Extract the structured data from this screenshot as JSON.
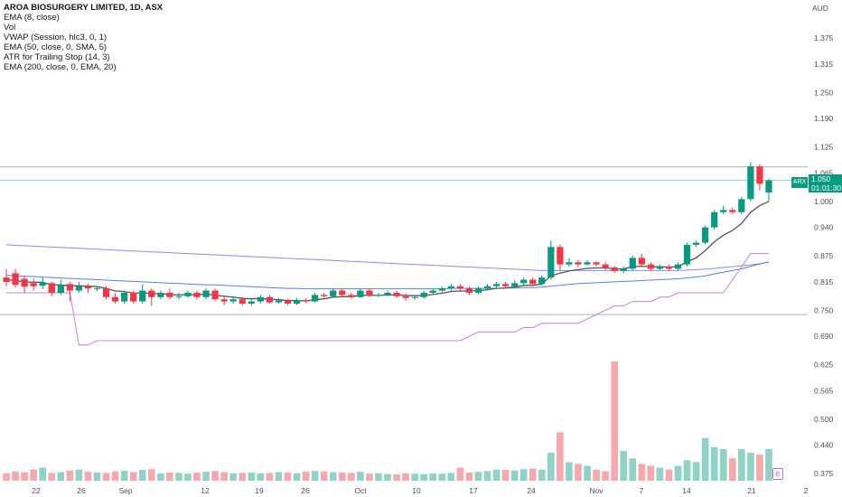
{
  "legend": {
    "title": "AROA BIOSURGERY LIMITED, 1D, ASX",
    "indicators": [
      "EMA (8, close)",
      "Vol",
      "VWAP (Session, hlc3, 0, 1)",
      "EMA (50, close, 0, SMA, 5)",
      "ATR for Trailing Stop (14, 3)",
      "EMA (200, close, 0, EMA, 20)"
    ]
  },
  "currency": "AUD",
  "price_tag": {
    "ticker": "ARX",
    "price": "1.050",
    "countdown": "01:01:30"
  },
  "earnings_badge": "E",
  "colors": {
    "up": "#089981",
    "down": "#f23645",
    "vol_up": "#8fd2c6",
    "vol_down": "#f6a8ad",
    "ema8": "#555555",
    "ema50": "#5b7bf0",
    "ema200": "#8c8ce6",
    "atr_stop": "#c87fd6"
  },
  "chart_data": {
    "type": "candlestick",
    "title": "AROA BIOSURGERY LIMITED, 1D, ASX",
    "y_ticks": [
      "1.375",
      "1.315",
      "1.250",
      "1.190",
      "1.125",
      "1.065",
      "1.000",
      "0.940",
      "0.875",
      "0.815",
      "0.750",
      "0.690",
      "0.625",
      "0.565",
      "0.500",
      "0.440",
      "0.375"
    ],
    "x_ticks": [
      "22",
      "26",
      "Sep",
      "12",
      "19",
      "26",
      "Oct",
      "10",
      "17",
      "24",
      "Nov",
      "7",
      "14",
      "21",
      "2"
    ],
    "ylim": [
      0.33,
      1.43
    ],
    "reference_lines": [
      1.079,
      1.048,
      0.74
    ],
    "candles": [
      [
        0.825,
        0.815,
        0.845,
        0.805,
        40
      ],
      [
        0.835,
        0.808,
        0.845,
        0.802,
        50
      ],
      [
        0.822,
        0.804,
        0.83,
        0.79,
        45
      ],
      [
        0.812,
        0.805,
        0.822,
        0.795,
        60
      ],
      [
        0.806,
        0.814,
        0.825,
        0.798,
        70
      ],
      [
        0.812,
        0.79,
        0.815,
        0.782,
        42
      ],
      [
        0.79,
        0.808,
        0.82,
        0.785,
        46
      ],
      [
        0.81,
        0.795,
        0.815,
        0.77,
        55
      ],
      [
        0.795,
        0.805,
        0.815,
        0.79,
        60
      ],
      [
        0.805,
        0.8,
        0.81,
        0.79,
        48
      ],
      [
        0.8,
        0.8,
        0.806,
        0.794,
        44
      ],
      [
        0.8,
        0.78,
        0.805,
        0.775,
        42
      ],
      [
        0.78,
        0.77,
        0.79,
        0.765,
        50
      ],
      [
        0.77,
        0.79,
        0.795,
        0.765,
        54
      ],
      [
        0.79,
        0.77,
        0.795,
        0.765,
        46
      ],
      [
        0.77,
        0.795,
        0.81,
        0.765,
        58
      ],
      [
        0.795,
        0.78,
        0.8,
        0.76,
        62
      ],
      [
        0.78,
        0.79,
        0.795,
        0.775,
        40
      ],
      [
        0.79,
        0.78,
        0.8,
        0.775,
        44
      ],
      [
        0.78,
        0.782,
        0.79,
        0.775,
        42
      ],
      [
        0.782,
        0.79,
        0.795,
        0.778,
        38
      ],
      [
        0.79,
        0.78,
        0.795,
        0.775,
        44
      ],
      [
        0.78,
        0.795,
        0.8,
        0.775,
        48
      ],
      [
        0.795,
        0.775,
        0.8,
        0.77,
        52
      ],
      [
        0.775,
        0.77,
        0.782,
        0.762,
        46
      ],
      [
        0.77,
        0.775,
        0.78,
        0.765,
        40
      ],
      [
        0.775,
        0.765,
        0.78,
        0.76,
        42
      ],
      [
        0.765,
        0.77,
        0.775,
        0.76,
        44
      ],
      [
        0.77,
        0.78,
        0.785,
        0.765,
        40
      ],
      [
        0.78,
        0.768,
        0.785,
        0.765,
        42
      ],
      [
        0.768,
        0.772,
        0.778,
        0.765,
        46
      ],
      [
        0.772,
        0.765,
        0.775,
        0.762,
        44
      ],
      [
        0.765,
        0.773,
        0.778,
        0.762,
        40
      ],
      [
        0.773,
        0.77,
        0.778,
        0.766,
        48
      ],
      [
        0.77,
        0.785,
        0.79,
        0.768,
        52
      ],
      [
        0.785,
        0.782,
        0.79,
        0.778,
        50
      ],
      [
        0.782,
        0.795,
        0.8,
        0.78,
        46
      ],
      [
        0.795,
        0.785,
        0.8,
        0.78,
        44
      ],
      [
        0.785,
        0.78,
        0.79,
        0.776,
        42
      ],
      [
        0.78,
        0.795,
        0.8,
        0.778,
        48
      ],
      [
        0.795,
        0.785,
        0.8,
        0.78,
        38
      ],
      [
        0.785,
        0.785,
        0.79,
        0.78,
        40
      ],
      [
        0.785,
        0.79,
        0.795,
        0.782,
        36
      ],
      [
        0.79,
        0.782,
        0.795,
        0.778,
        34
      ],
      [
        0.782,
        0.778,
        0.788,
        0.772,
        40
      ],
      [
        0.778,
        0.78,
        0.785,
        0.774,
        38
      ],
      [
        0.78,
        0.79,
        0.795,
        0.776,
        36
      ],
      [
        0.79,
        0.795,
        0.8,
        0.785,
        40
      ],
      [
        0.795,
        0.8,
        0.805,
        0.79,
        38
      ],
      [
        0.8,
        0.805,
        0.81,
        0.795,
        42
      ],
      [
        0.805,
        0.8,
        0.81,
        0.795,
        70
      ],
      [
        0.8,
        0.79,
        0.805,
        0.785,
        44
      ],
      [
        0.79,
        0.8,
        0.805,
        0.786,
        48
      ],
      [
        0.8,
        0.805,
        0.81,
        0.795,
        52
      ],
      [
        0.805,
        0.81,
        0.815,
        0.8,
        60
      ],
      [
        0.81,
        0.805,
        0.815,
        0.8,
        58
      ],
      [
        0.805,
        0.812,
        0.818,
        0.8,
        55
      ],
      [
        0.812,
        0.82,
        0.825,
        0.805,
        62
      ],
      [
        0.82,
        0.81,
        0.825,
        0.805,
        66
      ],
      [
        0.81,
        0.825,
        0.83,
        0.806,
        60
      ],
      [
        0.825,
        0.895,
        0.91,
        0.82,
        150
      ],
      [
        0.895,
        0.855,
        0.9,
        0.84,
        260
      ],
      [
        0.855,
        0.86,
        0.87,
        0.85,
        100
      ],
      [
        0.86,
        0.855,
        0.865,
        0.848,
        90
      ],
      [
        0.855,
        0.86,
        0.865,
        0.852,
        80
      ],
      [
        0.86,
        0.855,
        0.862,
        0.85,
        60
      ],
      [
        0.855,
        0.848,
        0.86,
        0.842,
        50
      ],
      [
        0.848,
        0.84,
        0.852,
        0.835,
        640
      ],
      [
        0.84,
        0.845,
        0.85,
        0.835,
        160
      ],
      [
        0.845,
        0.87,
        0.875,
        0.84,
        120
      ],
      [
        0.87,
        0.855,
        0.88,
        0.85,
        90
      ],
      [
        0.855,
        0.845,
        0.86,
        0.84,
        80
      ],
      [
        0.845,
        0.85,
        0.855,
        0.842,
        70
      ],
      [
        0.85,
        0.845,
        0.855,
        0.84,
        60
      ],
      [
        0.845,
        0.855,
        0.86,
        0.842,
        80
      ],
      [
        0.855,
        0.9,
        0.905,
        0.85,
        110
      ],
      [
        0.9,
        0.905,
        0.91,
        0.895,
        100
      ],
      [
        0.905,
        0.94,
        0.945,
        0.9,
        230
      ],
      [
        0.94,
        0.975,
        0.98,
        0.935,
        180
      ],
      [
        0.975,
        0.98,
        0.99,
        0.97,
        170
      ],
      [
        0.98,
        0.975,
        0.985,
        0.97,
        120
      ],
      [
        0.975,
        1.005,
        1.01,
        0.97,
        170
      ],
      [
        1.005,
        1.08,
        1.09,
        1.0,
        150
      ],
      [
        1.08,
        1.04,
        1.085,
        1.025,
        140
      ],
      [
        1.02,
        1.048,
        1.052,
        1.0,
        170
      ]
    ],
    "ema8": [
      0.82,
      0.818,
      0.815,
      0.814,
      0.814,
      0.808,
      0.808,
      0.806,
      0.806,
      0.805,
      0.804,
      0.8,
      0.794,
      0.793,
      0.789,
      0.79,
      0.788,
      0.788,
      0.786,
      0.785,
      0.786,
      0.785,
      0.787,
      0.784,
      0.782,
      0.78,
      0.777,
      0.776,
      0.777,
      0.775,
      0.774,
      0.772,
      0.772,
      0.771,
      0.774,
      0.776,
      0.78,
      0.781,
      0.781,
      0.784,
      0.784,
      0.784,
      0.785,
      0.785,
      0.784,
      0.783,
      0.784,
      0.786,
      0.789,
      0.793,
      0.794,
      0.794,
      0.795,
      0.797,
      0.8,
      0.801,
      0.803,
      0.807,
      0.807,
      0.81,
      0.829,
      0.835,
      0.84,
      0.843,
      0.846,
      0.847,
      0.847,
      0.845,
      0.845,
      0.85,
      0.851,
      0.85,
      0.85,
      0.849,
      0.85,
      0.861,
      0.87,
      0.887,
      0.907,
      0.922,
      0.933,
      0.949,
      0.975,
      0.99,
      1.0
    ],
    "ema50": [
      0.83,
      0.829,
      0.828,
      0.827,
      0.826,
      0.825,
      0.824,
      0.823,
      0.822,
      0.821,
      0.82,
      0.819,
      0.818,
      0.817,
      0.816,
      0.815,
      0.814,
      0.813,
      0.812,
      0.811,
      0.81,
      0.809,
      0.808,
      0.808,
      0.807,
      0.806,
      0.805,
      0.804,
      0.803,
      0.802,
      0.801,
      0.8,
      0.8,
      0.799,
      0.799,
      0.799,
      0.799,
      0.799,
      0.799,
      0.799,
      0.799,
      0.799,
      0.799,
      0.799,
      0.799,
      0.799,
      0.799,
      0.799,
      0.799,
      0.8,
      0.8,
      0.8,
      0.8,
      0.8,
      0.8,
      0.801,
      0.801,
      0.802,
      0.802,
      0.803,
      0.805,
      0.807,
      0.809,
      0.811,
      0.812,
      0.813,
      0.814,
      0.815,
      0.816,
      0.817,
      0.818,
      0.819,
      0.82,
      0.821,
      0.822,
      0.824,
      0.826,
      0.829,
      0.833,
      0.837,
      0.841,
      0.845,
      0.851,
      0.856,
      0.861
    ],
    "ema200": [
      0.9,
      0.899,
      0.898,
      0.897,
      0.896,
      0.895,
      0.894,
      0.893,
      0.892,
      0.891,
      0.89,
      0.889,
      0.888,
      0.887,
      0.886,
      0.885,
      0.884,
      0.883,
      0.882,
      0.881,
      0.88,
      0.879,
      0.878,
      0.877,
      0.876,
      0.875,
      0.874,
      0.873,
      0.872,
      0.871,
      0.87,
      0.869,
      0.868,
      0.867,
      0.866,
      0.865,
      0.864,
      0.863,
      0.862,
      0.861,
      0.86,
      0.859,
      0.858,
      0.857,
      0.856,
      0.855,
      0.854,
      0.853,
      0.852,
      0.851,
      0.85,
      0.849,
      0.848,
      0.847,
      0.846,
      0.845,
      0.844,
      0.843,
      0.842,
      0.841,
      0.841,
      0.841,
      0.841,
      0.841,
      0.841,
      0.841,
      0.841,
      0.841,
      0.841,
      0.841,
      0.841,
      0.841,
      0.841,
      0.841,
      0.841,
      0.842,
      0.843,
      0.844,
      0.846,
      0.848,
      0.85,
      0.852,
      0.854,
      0.857,
      0.86
    ],
    "atr_stop": [
      0.79,
      0.79,
      0.79,
      0.79,
      0.79,
      0.79,
      0.79,
      0.79,
      0.67,
      0.67,
      0.68,
      0.68,
      0.68,
      0.68,
      0.68,
      0.68,
      0.68,
      0.68,
      0.68,
      0.68,
      0.68,
      0.68,
      0.68,
      0.68,
      0.68,
      0.68,
      0.68,
      0.68,
      0.68,
      0.68,
      0.68,
      0.68,
      0.68,
      0.68,
      0.68,
      0.68,
      0.68,
      0.68,
      0.68,
      0.68,
      0.68,
      0.68,
      0.68,
      0.68,
      0.68,
      0.68,
      0.68,
      0.68,
      0.68,
      0.68,
      0.68,
      0.69,
      0.7,
      0.7,
      0.7,
      0.7,
      0.7,
      0.71,
      0.71,
      0.72,
      0.72,
      0.72,
      0.72,
      0.72,
      0.73,
      0.74,
      0.75,
      0.76,
      0.76,
      0.77,
      0.77,
      0.77,
      0.78,
      0.78,
      0.79,
      0.79,
      0.79,
      0.79,
      0.79,
      0.79,
      0.82,
      0.85,
      0.88,
      0.88,
      0.88
    ]
  }
}
